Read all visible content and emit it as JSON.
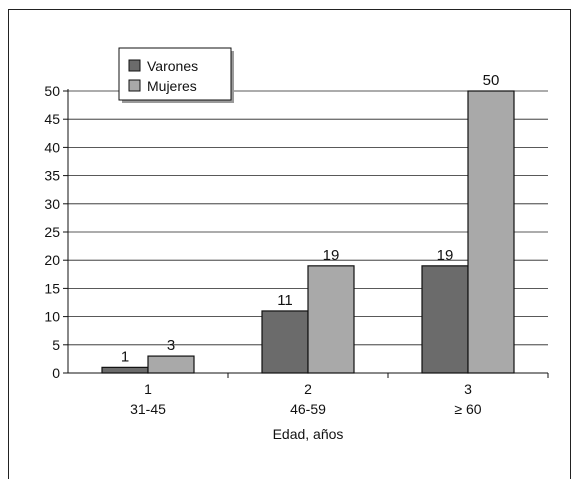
{
  "chart_data": {
    "type": "bar",
    "categories": [
      "1",
      "2",
      "3"
    ],
    "category_sublabels": [
      "31-45",
      "46-59",
      "≥ 60"
    ],
    "series": [
      {
        "name": "Varones",
        "values": [
          1,
          11,
          19
        ],
        "color": "#6b6b6b"
      },
      {
        "name": "Mujeres",
        "values": [
          3,
          19,
          50
        ],
        "color": "#a9a9a9"
      }
    ],
    "data_labels": [
      [
        "1",
        "11",
        "19"
      ],
      [
        "3",
        "19",
        "50"
      ]
    ],
    "yticks": [
      "0",
      "5",
      "10",
      "15",
      "20",
      "25",
      "30",
      "35",
      "40",
      "45",
      "50"
    ],
    "ylim": [
      0,
      50
    ],
    "xlabel": "Edad, años",
    "ylabel": "",
    "title": "",
    "grid": true,
    "legend_position": "top-left"
  }
}
